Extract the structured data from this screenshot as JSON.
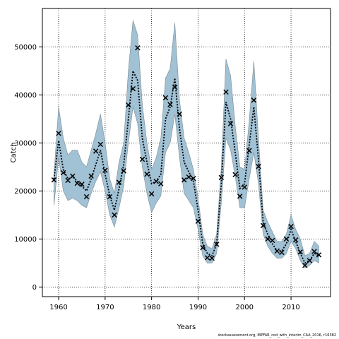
{
  "chart_data": {
    "type": "line",
    "title": "",
    "xlabel": "Years",
    "ylabel": "Catch",
    "xlim": [
      1956.5,
      2018.5
    ],
    "ylim": [
      -2000,
      58000
    ],
    "xticks": [
      1960,
      1970,
      1980,
      1990,
      2000,
      2010
    ],
    "yticks": [
      0,
      10000,
      20000,
      30000,
      40000,
      50000
    ],
    "grid": true,
    "grid_style": "dotted",
    "colors": {
      "band": "#a1c1d4",
      "band_edge": "#7d8a92",
      "line": "#000000",
      "marker": "#000000"
    },
    "years": [
      1959,
      1960,
      1961,
      1962,
      1963,
      1964,
      1965,
      1966,
      1967,
      1968,
      1969,
      1970,
      1971,
      1972,
      1973,
      1974,
      1975,
      1976,
      1977,
      1978,
      1979,
      1980,
      1981,
      1982,
      1983,
      1984,
      1985,
      1986,
      1987,
      1988,
      1989,
      1990,
      1991,
      1992,
      1993,
      1994,
      1995,
      1996,
      1997,
      1998,
      1999,
      2000,
      2001,
      2002,
      2003,
      2004,
      2005,
      2006,
      2007,
      2008,
      2009,
      2010,
      2011,
      2012,
      2013,
      2014,
      2015,
      2016
    ],
    "series": [
      {
        "kind": "estimate",
        "values": [
          22500,
          30500,
          24500,
          22500,
          23000,
          22000,
          21000,
          20000,
          22500,
          25500,
          28500,
          23500,
          19000,
          16000,
          20500,
          25500,
          35000,
          45000,
          43000,
          31000,
          26000,
          21500,
          22000,
          23500,
          35000,
          37500,
          43500,
          33000,
          26000,
          24000,
          22000,
          16000,
          9000,
          7000,
          6500,
          9000,
          21500,
          38500,
          35000,
          28000,
          20500,
          21500,
          29500,
          37500,
          26500,
          13500,
          11000,
          9000,
          7500,
          7500,
          9000,
          12000,
          9500,
          7000,
          5000,
          5500,
          7000,
          6500
        ]
      },
      {
        "kind": "observed",
        "values": [
          22300,
          32000,
          23800,
          22200,
          23100,
          21600,
          21400,
          18800,
          23100,
          28300,
          29700,
          24300,
          18800,
          15000,
          21800,
          24200,
          37900,
          41300,
          49800,
          26600,
          23500,
          19400,
          22000,
          21500,
          39400,
          38000,
          41600,
          36000,
          22300,
          22900,
          22600,
          13700,
          8200,
          6100,
          6000,
          8900,
          22800,
          40600,
          34000,
          23400,
          18900,
          20800,
          28400,
          38900,
          25100,
          12800,
          10000,
          9700,
          7500,
          7200,
          10000,
          12600,
          9800,
          7300,
          4500,
          5500,
          7400,
          6700
        ]
      },
      {
        "kind": "upper",
        "values": [
          23500,
          37500,
          31000,
          27500,
          28500,
          28500,
          26000,
          25000,
          28500,
          32000,
          36000,
          30000,
          22500,
          19500,
          26000,
          30000,
          45000,
          55500,
          52500,
          38000,
          30000,
          24500,
          27000,
          31000,
          43500,
          45500,
          55000,
          39000,
          31000,
          28000,
          24500,
          18500,
          11000,
          8500,
          8000,
          11000,
          25000,
          47500,
          44000,
          33500,
          25000,
          24500,
          34500,
          47000,
          31000,
          16000,
          13500,
          11500,
          9500,
          9500,
          11000,
          15000,
          12000,
          10000,
          6500,
          7000,
          9500,
          8500
        ]
      },
      {
        "kind": "lower",
        "values": [
          17000,
          27000,
          20000,
          18000,
          18500,
          18000,
          17000,
          16500,
          19500,
          22000,
          24000,
          20000,
          15000,
          12500,
          16500,
          21000,
          30000,
          37500,
          34000,
          25000,
          19500,
          15500,
          17500,
          19000,
          28000,
          30000,
          36000,
          27000,
          19500,
          18000,
          16500,
          12000,
          6500,
          5000,
          5000,
          7000,
          17500,
          31000,
          28500,
          23000,
          16500,
          16500,
          22500,
          28000,
          21500,
          11000,
          8500,
          7000,
          6000,
          6000,
          7000,
          9500,
          8000,
          5500,
          4000,
          4500,
          5500,
          5000
        ]
      }
    ]
  },
  "footer": {
    "caption": "stockassessment.org, IBPFAR_cod_with_interim_CAA_2016, r16382"
  }
}
